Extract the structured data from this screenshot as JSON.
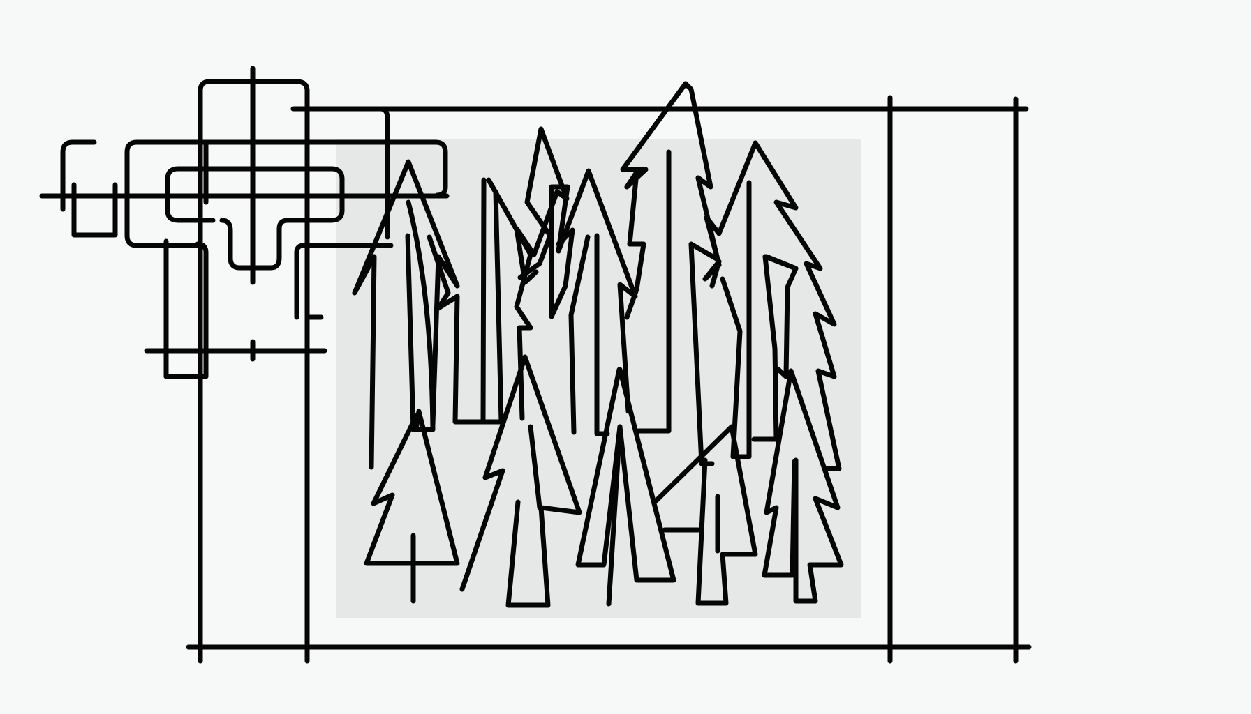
{
  "canvas": {
    "background": "#f7f8f8",
    "panel_fill": "#e6e7e7",
    "ink_color": "#050505"
  },
  "elements": {
    "frame": "rectangular-frame-lines",
    "mechanism": "interlocking-bracket-outlines",
    "forest": "stylized-conifer-tree-outlines"
  }
}
